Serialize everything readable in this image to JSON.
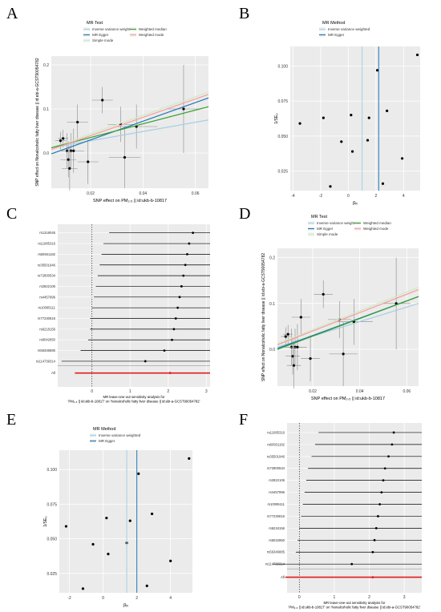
{
  "panels": [
    "A",
    "B",
    "C",
    "D",
    "E",
    "F"
  ],
  "colors": {
    "panel_bg": "#ebebeb",
    "grid": "#ffffff",
    "point": "#000000",
    "ivw": "#a6cee3",
    "egger": "#1f78b4",
    "simple_mode": "#ccebc5",
    "weighted_median": "#33a02c",
    "weighted_mode": "#fb9a99",
    "all_bar": "#e31a1c"
  },
  "chart_data": [
    {
      "id": "A",
      "type": "scatter",
      "legend_title": "MR Test",
      "legend": [
        "Inverse variance weighted",
        "MR Egger",
        "Simple mode",
        "Weighted median",
        "Weighted mode"
      ],
      "xlabel": "SNP effect on PM₂.₅ || id:ukb-b-10817",
      "ylabel": "SNP effect on Nonalcoholic fatty liver disease || id:ebi-a-GCST90054782",
      "x_ticks": [
        "0.02",
        "0.04",
        "0.06"
      ],
      "y_ticks": [
        "0.0",
        "0.1",
        "0.2"
      ],
      "xlim": [
        0.005,
        0.065
      ],
      "ylim": [
        -0.08,
        0.22
      ],
      "points": [
        {
          "x": 0.0085,
          "y": 0.028,
          "xe": 0.002,
          "ye": 0.02
        },
        {
          "x": 0.0095,
          "y": 0.033,
          "xe": 0.002,
          "ye": 0.02
        },
        {
          "x": 0.011,
          "y": 0.005,
          "xe": 0.003,
          "ye": 0.04
        },
        {
          "x": 0.0115,
          "y": -0.015,
          "xe": 0.003,
          "ye": 0.04
        },
        {
          "x": 0.012,
          "y": -0.035,
          "xe": 0.003,
          "ye": 0.05
        },
        {
          "x": 0.0125,
          "y": 0.005,
          "xe": 0.003,
          "ye": 0.04
        },
        {
          "x": 0.0135,
          "y": 0.005,
          "xe": 0.004,
          "ye": 0.05
        },
        {
          "x": 0.015,
          "y": 0.07,
          "xe": 0.004,
          "ye": 0.04
        },
        {
          "x": 0.019,
          "y": -0.02,
          "xe": 0.004,
          "ye": 0.05
        },
        {
          "x": 0.0245,
          "y": 0.12,
          "xe": 0.004,
          "ye": 0.03
        },
        {
          "x": 0.0315,
          "y": 0.065,
          "xe": 0.005,
          "ye": 0.04
        },
        {
          "x": 0.033,
          "y": -0.01,
          "xe": 0.006,
          "ye": 0.07
        },
        {
          "x": 0.0375,
          "y": 0.06,
          "xe": 0.008,
          "ye": 0.05
        },
        {
          "x": 0.0555,
          "y": 0.1,
          "xe": 0.006,
          "ye": 0.1
        }
      ],
      "lines": [
        {
          "method": "Inverse variance weighted",
          "y_at_x0": 0.012,
          "y_at_x1": 0.075
        },
        {
          "method": "MR Egger",
          "y_at_x0": -0.002,
          "y_at_x1": 0.125
        },
        {
          "method": "Simple mode",
          "y_at_x0": 0.012,
          "y_at_x1": 0.138
        },
        {
          "method": "Weighted median",
          "y_at_x0": 0.012,
          "y_at_x1": 0.105
        },
        {
          "method": "Weighted mode",
          "y_at_x0": 0.008,
          "y_at_x1": 0.133
        }
      ]
    },
    {
      "id": "B",
      "type": "scatter",
      "legend_title": "MR Method",
      "legend": [
        "Inverse variance weighted",
        "MR Egger"
      ],
      "xlabel": "βᵢᵥ",
      "ylabel": "1/SEᵢᵥ",
      "x_ticks": [
        "-4",
        "-2",
        "0",
        "2",
        "4"
      ],
      "y_ticks": [
        "0.025",
        "0.050",
        "0.075",
        "0.100"
      ],
      "xlim": [
        -4.2,
        5.2
      ],
      "ylim": [
        0.011,
        0.114
      ],
      "points": [
        {
          "x": -3.5,
          "y": 0.059
        },
        {
          "x": -1.8,
          "y": 0.063
        },
        {
          "x": -1.3,
          "y": 0.014
        },
        {
          "x": -0.5,
          "y": 0.046
        },
        {
          "x": 0.2,
          "y": 0.065
        },
        {
          "x": 0.3,
          "y": 0.039
        },
        {
          "x": 1.4,
          "y": 0.047
        },
        {
          "x": 1.5,
          "y": 0.063
        },
        {
          "x": 2.1,
          "y": 0.097
        },
        {
          "x": 2.5,
          "y": 0.016
        },
        {
          "x": 2.8,
          "y": 0.068
        },
        {
          "x": 3.9,
          "y": 0.034
        },
        {
          "x": 5.0,
          "y": 0.108
        }
      ],
      "vlines": [
        {
          "method": "Inverse variance weighted",
          "x": 1.0
        },
        {
          "method": "MR Egger",
          "x": 2.2
        }
      ]
    },
    {
      "id": "C",
      "type": "forest",
      "xlabel": "MR leave-one-out sensitivity analysis for\n'PM₂.₅ || id:ukb-b-10817' on 'Nonalcoholic fatty liver disease || id:ebi-a-GCST90054782'",
      "x_ticks": [
        "0",
        "1",
        "2",
        "3"
      ],
      "xlim": [
        -0.9,
        3.1
      ],
      "snps": [
        "rs1318045",
        "rs11085316",
        "rs60931182",
        "rs35501946",
        "rs72800534",
        "rs2822106",
        "rs4457996",
        "rs10095111",
        "rs77230816",
        "rs6218156",
        "rs6042850",
        "rs56346885",
        "rs114739314"
      ],
      "est": [
        2.65,
        2.55,
        2.5,
        2.45,
        2.4,
        2.35,
        2.3,
        2.25,
        2.2,
        2.15,
        2.1,
        1.9,
        1.4
      ],
      "lo": [
        0.45,
        0.3,
        0.25,
        0.2,
        0.15,
        0.1,
        0.05,
        0.0,
        -0.05,
        -0.05,
        -0.1,
        -0.3,
        -0.8
      ],
      "hi": [
        4.9,
        4.8,
        4.75,
        4.7,
        4.65,
        4.6,
        4.55,
        4.5,
        4.45,
        4.35,
        4.3,
        4.1,
        3.6
      ],
      "all_label": "All",
      "all": {
        "est": 2.05,
        "lo": -0.45,
        "hi": 4.55
      }
    },
    {
      "id": "D",
      "type": "scatter",
      "legend_title": "MR Test",
      "legend": [
        "Inverse variance weighted",
        "MR Egger",
        "Simple mode",
        "Weighted median",
        "Weighted mode"
      ],
      "xlabel": "SNP effect on PM₂.₅ || id:ukb-b-10817",
      "ylabel": "SNP effect on Nonalcoholic fatty liver disease || id:ebi-a-GCST90054782",
      "x_ticks": [
        "0.02",
        "0.04",
        "0.06"
      ],
      "y_ticks": [
        "0.0",
        "0.1",
        "0.2"
      ],
      "xlim": [
        0.005,
        0.065
      ],
      "ylim": [
        -0.08,
        0.22
      ],
      "points": [
        {
          "x": 0.0085,
          "y": 0.028,
          "xe": 0.002,
          "ye": 0.02
        },
        {
          "x": 0.0095,
          "y": 0.033,
          "xe": 0.002,
          "ye": 0.02
        },
        {
          "x": 0.011,
          "y": 0.005,
          "xe": 0.003,
          "ye": 0.04
        },
        {
          "x": 0.0115,
          "y": -0.015,
          "xe": 0.003,
          "ye": 0.04
        },
        {
          "x": 0.012,
          "y": -0.035,
          "xe": 0.003,
          "ye": 0.05
        },
        {
          "x": 0.0125,
          "y": 0.005,
          "xe": 0.003,
          "ye": 0.04
        },
        {
          "x": 0.0135,
          "y": 0.005,
          "xe": 0.004,
          "ye": 0.05
        },
        {
          "x": 0.015,
          "y": 0.07,
          "xe": 0.004,
          "ye": 0.04
        },
        {
          "x": 0.019,
          "y": -0.02,
          "xe": 0.004,
          "ye": 0.05
        },
        {
          "x": 0.0245,
          "y": 0.12,
          "xe": 0.004,
          "ye": 0.03
        },
        {
          "x": 0.0315,
          "y": 0.065,
          "xe": 0.005,
          "ye": 0.04
        },
        {
          "x": 0.033,
          "y": -0.01,
          "xe": 0.006,
          "ye": 0.07
        },
        {
          "x": 0.0375,
          "y": 0.06,
          "xe": 0.008,
          "ye": 0.05
        },
        {
          "x": 0.0555,
          "y": 0.1,
          "xe": 0.006,
          "ye": 0.1
        }
      ],
      "lines": [
        {
          "method": "Inverse variance weighted",
          "y_at_x0": 0.005,
          "y_at_x1": 0.1
        },
        {
          "method": "MR Egger",
          "y_at_x0": 0.002,
          "y_at_x1": 0.115
        },
        {
          "method": "Simple mode",
          "y_at_x0": 0.012,
          "y_at_x1": 0.135
        },
        {
          "method": "Weighted median",
          "y_at_x0": 0.0,
          "y_at_x1": 0.115
        },
        {
          "method": "Weighted mode",
          "y_at_x0": 0.01,
          "y_at_x1": 0.13
        }
      ]
    },
    {
      "id": "E",
      "type": "scatter",
      "legend_title": "MR Method",
      "legend": [
        "Inverse variance weighted",
        "MR Egger"
      ],
      "xlabel": "βᵢᵥ",
      "ylabel": "1/SEᵢᵥ",
      "x_ticks": [
        "-2",
        "0",
        "2",
        "4"
      ],
      "y_ticks": [
        "0.025",
        "0.050",
        "0.075",
        "0.100"
      ],
      "xlim": [
        -2.6,
        5.3
      ],
      "ylim": [
        0.011,
        0.114
      ],
      "points": [
        {
          "x": -2.2,
          "y": 0.059
        },
        {
          "x": -1.2,
          "y": 0.014
        },
        {
          "x": -0.6,
          "y": 0.046
        },
        {
          "x": 0.2,
          "y": 0.065
        },
        {
          "x": 0.3,
          "y": 0.039
        },
        {
          "x": 1.4,
          "y": 0.047
        },
        {
          "x": 1.6,
          "y": 0.063
        },
        {
          "x": 2.1,
          "y": 0.097
        },
        {
          "x": 2.6,
          "y": 0.016
        },
        {
          "x": 2.9,
          "y": 0.068
        },
        {
          "x": 4.0,
          "y": 0.034
        },
        {
          "x": 5.1,
          "y": 0.108
        }
      ],
      "vlines": [
        {
          "method": "Inverse variance weighted",
          "x": 1.4
        },
        {
          "method": "MR Egger",
          "x": 2.0
        }
      ]
    },
    {
      "id": "F",
      "type": "forest",
      "xlabel": "MR leave-one-out sensitivity analysis for\n'PM₂.₅ || id:ukb-b-10817' on 'Nonalcoholic fatty liver disease || id:ebi-a-GCST90054782'",
      "x_ticks": [
        "0",
        "1",
        "2",
        "3"
      ],
      "xlim": [
        -0.35,
        3.5
      ],
      "snps": [
        "rs11085316",
        "rs60931182",
        "rs35501946",
        "rs72800534",
        "rs2822106",
        "rs4457996",
        "rs10095111",
        "rs77230816",
        "rs6218156",
        "rs6042850",
        "rs56346885",
        "rs114739314"
      ],
      "est": [
        2.7,
        2.65,
        2.55,
        2.45,
        2.4,
        2.35,
        2.3,
        2.25,
        2.2,
        2.15,
        2.1,
        1.5
      ],
      "lo": [
        0.55,
        0.45,
        0.35,
        0.25,
        0.2,
        0.15,
        0.1,
        0.05,
        0.0,
        -0.05,
        -0.1,
        -0.75
      ],
      "hi": [
        4.85,
        4.8,
        4.75,
        4.7,
        4.65,
        4.6,
        4.55,
        4.5,
        4.45,
        4.35,
        4.3,
        3.75
      ],
      "all_label": "All",
      "all": {
        "est": 2.1,
        "lo": -0.4,
        "hi": 4.6
      }
    }
  ]
}
